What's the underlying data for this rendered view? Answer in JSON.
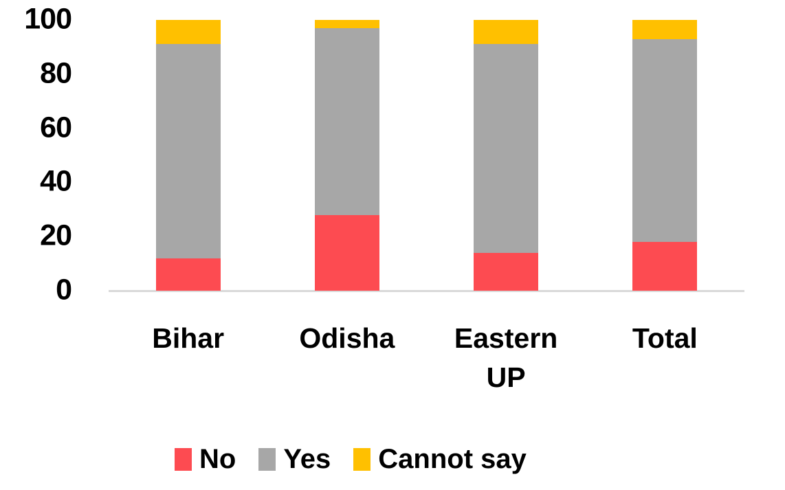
{
  "chart_data": {
    "type": "bar",
    "subtype": "stacked-column",
    "title": "",
    "xlabel": "",
    "ylabel": "",
    "categories": [
      "Bihar",
      "Odisha",
      "Eastern UP",
      "Total"
    ],
    "series": [
      {
        "name": "No",
        "color": "#FD4B51",
        "values": [
          12,
          28,
          14,
          18
        ]
      },
      {
        "name": "Yes",
        "color": "#A7A7A7",
        "values": [
          79,
          69,
          77,
          75
        ]
      },
      {
        "name": "Cannot say",
        "color": "#FFC000",
        "values": [
          9,
          3,
          9,
          7
        ]
      }
    ],
    "ylim": [
      0,
      100
    ],
    "y_ticks": [
      100,
      80,
      60,
      40,
      20,
      0
    ],
    "grid": false,
    "legend_position": "bottom",
    "axis_line_color": "#D9D9D9",
    "text_color": "#000000",
    "background_color": "#FFFFFF"
  }
}
